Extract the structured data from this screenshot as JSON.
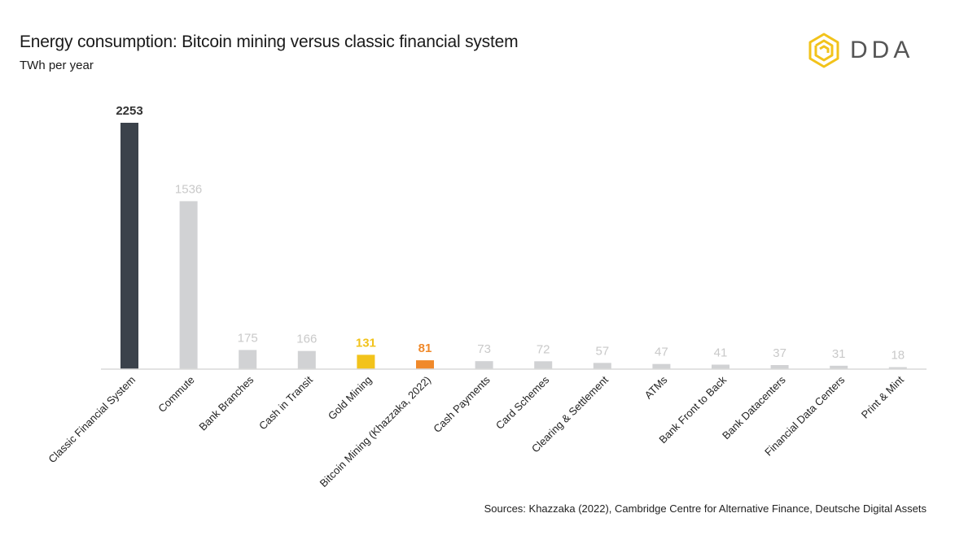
{
  "header": {
    "title": "Energy consumption: Bitcoin mining versus classic financial system",
    "subtitle": "TWh per year"
  },
  "logo": {
    "icon": "dda-logo-icon",
    "text": "DDA",
    "color": "#F2C31B"
  },
  "footer": {
    "source": "Sources: Khazzaka (2022), Cambridge Centre for Alternative Finance, Deutsche Digital Assets"
  },
  "chart_data": {
    "type": "bar",
    "title": "Energy consumption: Bitcoin mining versus classic financial system",
    "ylabel": "TWh per year",
    "xlabel": "",
    "ylim": [
      0,
      2253
    ],
    "grid": false,
    "legend": "none",
    "categories": [
      "Classic Financial System",
      "Commute",
      "Bank Branches",
      "Cash in Transit",
      "Gold Mining",
      "Bitcoin Mining (Khazzaka, 2022)",
      "Cash Payments",
      "Card Schemes",
      "Clearing & Settlement",
      "ATMs",
      "Bank Front to Back",
      "Bank Datacenters",
      "Financial Data Centers",
      "Print & Mint"
    ],
    "values": [
      2253,
      1536,
      175,
      166,
      131,
      81,
      73,
      72,
      57,
      47,
      41,
      37,
      31,
      18
    ],
    "colors": [
      "#3B424B",
      "#D1D2D4",
      "#D1D2D4",
      "#D1D2D4",
      "#F2C31B",
      "#F0892A",
      "#D1D2D4",
      "#D1D2D4",
      "#D1D2D4",
      "#D1D2D4",
      "#D1D2D4",
      "#D1D2D4",
      "#D1D2D4",
      "#D1D2D4"
    ],
    "label_colors": [
      "#333333",
      "#c9c9c9",
      "#c9c9c9",
      "#c9c9c9",
      "#F2C31B",
      "#F0892A",
      "#c9c9c9",
      "#c9c9c9",
      "#c9c9c9",
      "#c9c9c9",
      "#c9c9c9",
      "#c9c9c9",
      "#c9c9c9",
      "#c9c9c9"
    ]
  }
}
